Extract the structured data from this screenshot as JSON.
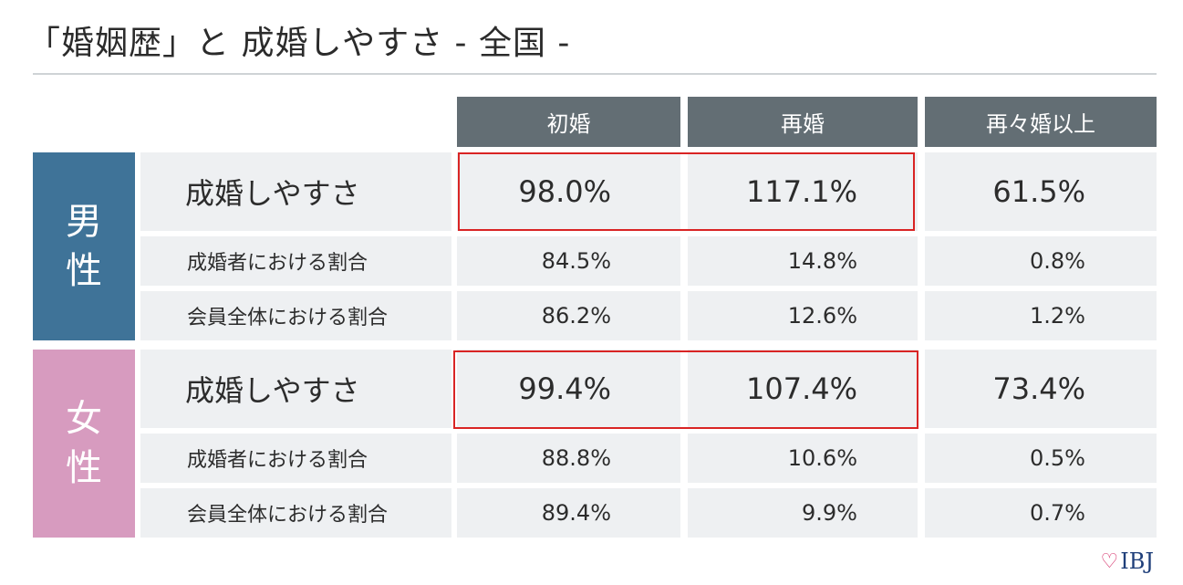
{
  "title": "「婚姻歴」と 成婚しやすさ - 全国 -",
  "chart_data": {
    "type": "table",
    "columns": [
      "初婚",
      "再婚",
      "再々婚以上"
    ],
    "groups": [
      {
        "label_line1": "男",
        "label_line2": "性",
        "color": "#3f7398",
        "rows": [
          {
            "label": "成婚しやすさ",
            "values": [
              "98.0%",
              "117.1%",
              "61.5%"
            ]
          },
          {
            "label": "成婚者における割合",
            "values": [
              "84.5%",
              "14.8%",
              "0.8%"
            ]
          },
          {
            "label": "会員全体における割合",
            "values": [
              "86.2%",
              "12.6%",
              "1.2%"
            ]
          }
        ]
      },
      {
        "label_line1": "女",
        "label_line2": "性",
        "color": "#d79bbf",
        "rows": [
          {
            "label": "成婚しやすさ",
            "values": [
              "99.4%",
              "107.4%",
              "73.4%"
            ]
          },
          {
            "label": "成婚者における割合",
            "values": [
              "88.8%",
              "10.6%",
              "0.5%"
            ]
          },
          {
            "label": "会員全体における割合",
            "values": [
              "89.4%",
              "9.9%",
              "0.7%"
            ]
          }
        ]
      }
    ],
    "highlight_color": "#d92424"
  },
  "logo": {
    "text": "IBJ",
    "icon": "heart-icon"
  }
}
